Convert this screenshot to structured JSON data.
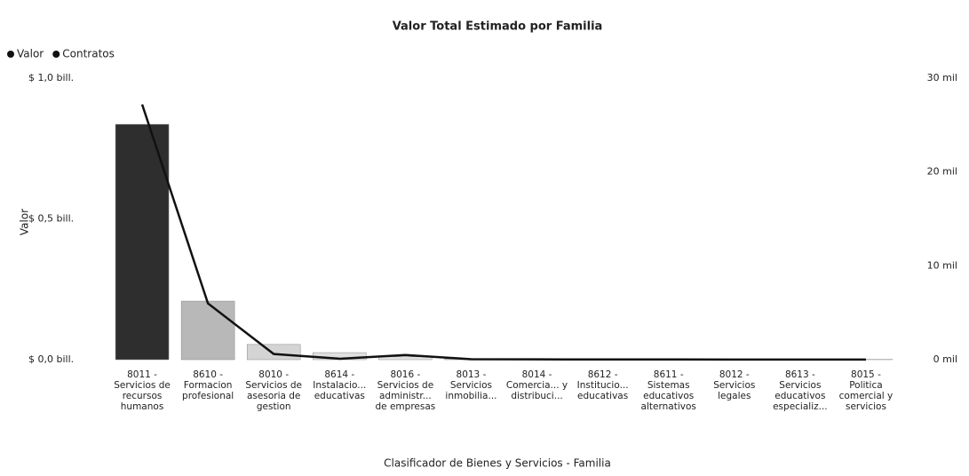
{
  "chart_data": {
    "type": "bar-line",
    "title": "Valor Total Estimado por Familia",
    "x_label": "Clasificador de Bienes y Servicios - Familia",
    "y_label": "Valor",
    "categories": [
      "8011 - Servicios de recursos humanos",
      "8610 - Formacion profesional",
      "8010 - Servicios de asesoria de gestion",
      "8614 - Instalacio... educativas",
      "8016 - Servicios de administr... de empresas",
      "8013 - Servicios inmobilia...",
      "8014 - Comercia... y distribuci...",
      "8612 - Institucio... educativas",
      "8611 - Sistemas educativos alternativos",
      "8012 - Servicios legales",
      "8613 - Servicios educativos especializ...",
      "8015 - Politica comercial y servicios"
    ],
    "series": [
      {
        "name": "Valor",
        "color": "#111111",
        "colors": [
          "#2e2e2e",
          "#b8b8b8",
          "#d4d4d4",
          "#e0e0e0",
          "#e4e4e4",
          "#e8e8e8",
          "#e8e8e8",
          "#e8e8e8",
          "#e8e8e8",
          "#e8e8e8",
          "#e8e8e8",
          "#e8e8e8"
        ],
        "values": [
          0.836,
          0.208,
          0.054,
          0.025,
          0.01,
          0.003,
          0.002,
          0.002,
          0.001,
          0.001,
          0.001,
          0.001
        ]
      },
      {
        "name": "Contratos",
        "color": "#111111",
        "axis": "y2",
        "values": [
          27200,
          6000,
          600,
          100,
          500,
          50,
          30,
          20,
          20,
          10,
          10,
          10
        ]
      }
    ],
    "ylim": [
      0,
      1.0
    ],
    "yticks": [
      {
        "value": 0,
        "label": "$ 0,0 bill."
      },
      {
        "value": 0.5,
        "label": "$ 0,5 bill."
      },
      {
        "value": 1.0,
        "label": "$ 1,0 bill."
      }
    ],
    "y2lim": [
      0,
      30000
    ],
    "y2ticks": [
      {
        "value": 0,
        "label": "0 mil"
      },
      {
        "value": 10000,
        "label": "10 mil"
      },
      {
        "value": 20000,
        "label": "20 mil"
      },
      {
        "value": 30000,
        "label": "30 mil"
      }
    ],
    "legend": "top-left"
  }
}
